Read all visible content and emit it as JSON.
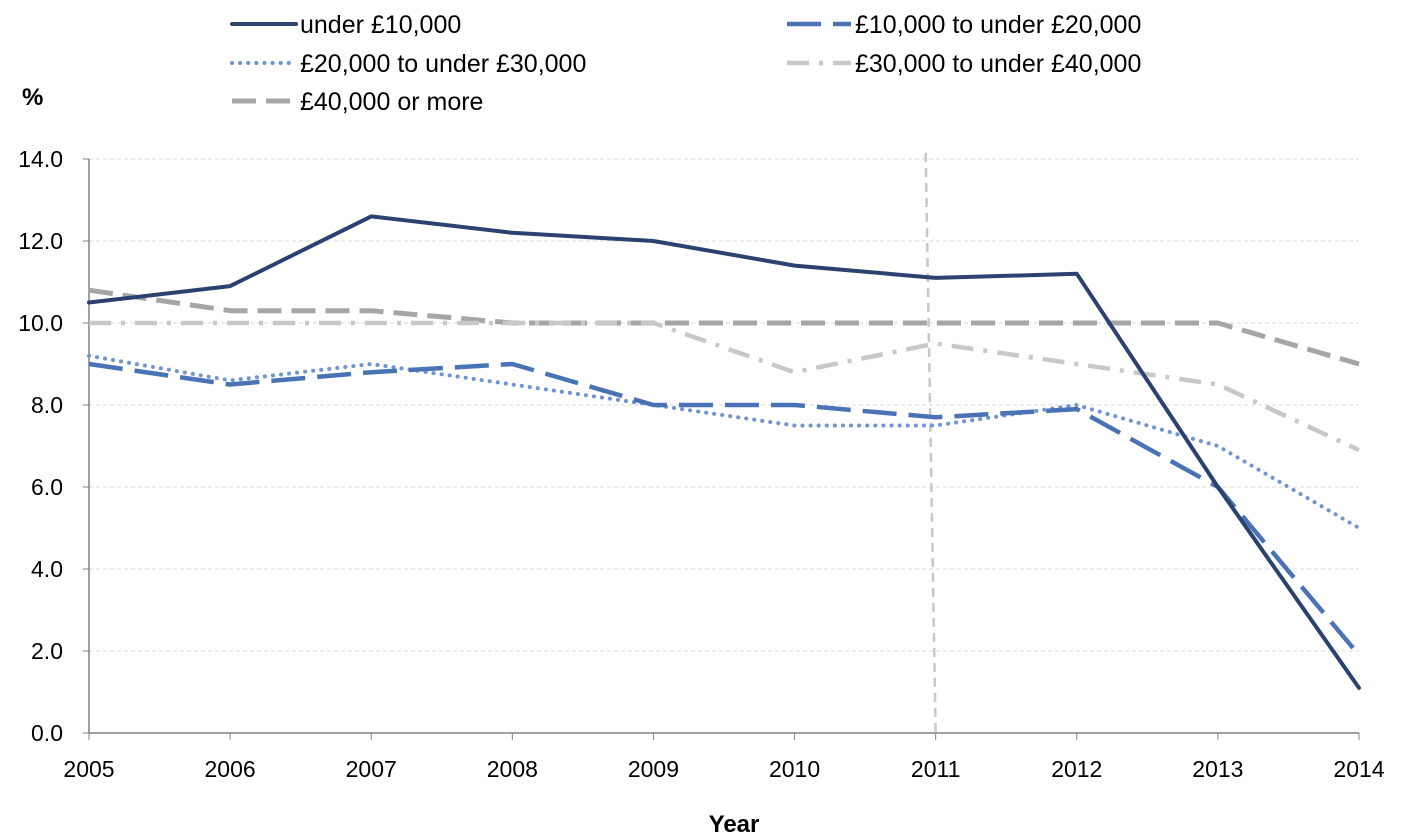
{
  "chart_data": {
    "type": "line",
    "ylabel": "%",
    "xlabel": "Year",
    "x": [
      "2005",
      "2006",
      "2007",
      "2008",
      "2009",
      "2010",
      "2011",
      "2012",
      "2013",
      "2014"
    ],
    "ylim": [
      0,
      14
    ],
    "yticks": [
      "0.0",
      "2.0",
      "4.0",
      "6.0",
      "8.0",
      "10.0",
      "12.0",
      "14.0"
    ],
    "grid": true,
    "legend_position": "top",
    "reference_line_x": "2011",
    "series": [
      {
        "name": "under £10,000",
        "style": "solid",
        "color": "#2b4270",
        "values": [
          10.5,
          10.9,
          12.6,
          12.2,
          12.0,
          11.4,
          11.1,
          11.2,
          6.0,
          1.1
        ]
      },
      {
        "name": "£10,000 to under £20,000",
        "style": "long-dash",
        "color": "#4a73b5",
        "values": [
          9.0,
          8.5,
          8.8,
          9.0,
          8.0,
          8.0,
          7.7,
          7.9,
          6.0,
          1.9
        ]
      },
      {
        "name": "£20,000 to under £30,000",
        "style": "dotted",
        "color": "#6f94d2",
        "values": [
          9.2,
          8.6,
          9.0,
          8.5,
          8.0,
          7.5,
          7.5,
          8.0,
          7.0,
          5.0
        ]
      },
      {
        "name": "£30,000 to under £40,000",
        "style": "dash-dot",
        "color": "#c8c8c8",
        "values": [
          10.0,
          10.0,
          10.0,
          10.0,
          10.0,
          8.8,
          9.5,
          9.0,
          8.5,
          6.9
        ]
      },
      {
        "name": "£40,000 or more",
        "style": "dashed",
        "color": "#a6a6a6",
        "values": [
          10.8,
          10.3,
          10.3,
          10.0,
          10.0,
          10.0,
          10.0,
          10.0,
          10.0,
          9.0
        ]
      }
    ]
  }
}
